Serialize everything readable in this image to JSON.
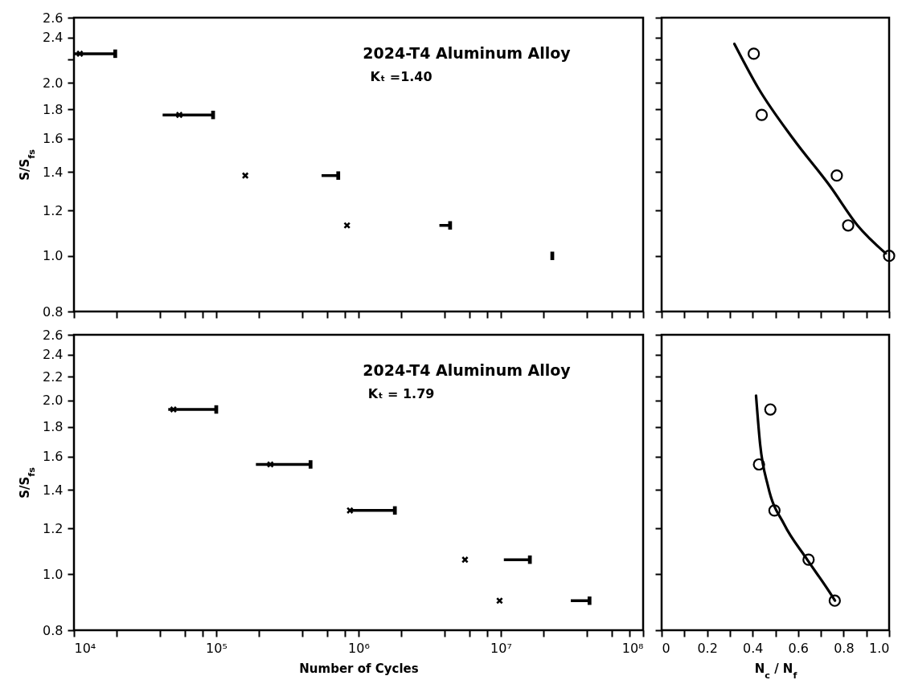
{
  "chart_data": [
    {
      "type": "scatter",
      "ylabel": "S/S$_{fs}$",
      "annotations": [
        "2024-T4 Aluminum Alloy",
        "Kₜ =1.40"
      ],
      "log": "xy",
      "xlim": [
        10000,
        100000000
      ],
      "xticks": [
        {
          "value": 10000,
          "label": null
        },
        {
          "value": 20000,
          "label": null
        },
        {
          "value": 40000,
          "label": null
        },
        {
          "value": 60000,
          "label": null
        },
        {
          "value": 80000,
          "label": null
        },
        {
          "value": 100000,
          "label": null
        },
        {
          "value": 200000,
          "label": null
        },
        {
          "value": 400000,
          "label": null
        },
        {
          "value": 600000,
          "label": null
        },
        {
          "value": 800000,
          "label": null
        },
        {
          "value": 1000000,
          "label": null
        },
        {
          "value": 2000000,
          "label": null
        },
        {
          "value": 4000000,
          "label": null
        },
        {
          "value": 6000000,
          "label": null
        },
        {
          "value": 8000000,
          "label": null
        },
        {
          "value": 10000000,
          "label": null
        },
        {
          "value": 20000000,
          "label": null
        },
        {
          "value": 40000000,
          "label": null
        },
        {
          "value": 60000000,
          "label": null
        },
        {
          "value": 80000000,
          "label": null
        },
        {
          "value": 100000000,
          "label": null
        }
      ],
      "ylim": [
        0.8,
        2.6
      ],
      "yticks": [
        0.8,
        {
          "value": 1,
          "label": "1.0"
        },
        1.2,
        1.4,
        1.6,
        1.8,
        {
          "value": 2,
          "label": "2.0"
        },
        {
          "value": 2.2,
          "label": null
        },
        2.4,
        2.6
      ],
      "tick_labels": "y",
      "series": [
        {
          "type": "scatter",
          "marker": "cross",
          "color": "#000000",
          "x": [
            11000,
            55000,
            160000,
            830000
          ],
          "values": [
            2.25,
            1.76,
            1.38,
            1.13
          ]
        },
        {
          "type": "scatter",
          "marker": "square",
          "color": "#000000",
          "x": [
            19500,
            95000,
            720000,
            4400000,
            23000000
          ],
          "values": [
            2.25,
            1.76,
            1.38,
            1.13,
            1.0
          ],
          "xerrors": [
            [
              10000,
              19500
            ],
            [
              42000,
              95000
            ],
            [
              550000,
              720000
            ],
            [
              3700000,
              4400000
            ],
            [
              23000000,
              23000000
            ]
          ]
        }
      ]
    },
    {
      "type": "scatter",
      "log": "y",
      "xlim": [
        0,
        1
      ],
      "xticks": [
        {
          "value": 0,
          "label": null
        },
        {
          "value": 0.1,
          "label": null
        },
        {
          "value": 0.2,
          "label": null
        },
        {
          "value": 0.3,
          "label": null
        },
        {
          "value": 0.4,
          "label": null
        },
        {
          "value": 0.5,
          "label": null
        },
        {
          "value": 0.6,
          "label": null
        },
        {
          "value": 0.7,
          "label": null
        },
        {
          "value": 0.8,
          "label": null
        },
        {
          "value": 0.9,
          "label": null
        },
        {
          "value": 1,
          "label": null
        }
      ],
      "ylim": [
        0.8,
        2.6
      ],
      "yticks": [
        {
          "value": 0.8,
          "label": null
        },
        {
          "value": 1,
          "label": null
        },
        {
          "value": 1.2,
          "label": null
        },
        {
          "value": 1.4,
          "label": null
        },
        {
          "value": 1.6,
          "label": null
        },
        {
          "value": 1.8,
          "label": null
        },
        {
          "value": 2,
          "label": null
        },
        {
          "value": 2.2,
          "label": null
        },
        {
          "value": 2.4,
          "label": null
        },
        {
          "value": 2.6,
          "label": null
        }
      ],
      "tick_labels": false,
      "series": [
        {
          "type": "scatter",
          "marker": "circle",
          "color": "#000000",
          "x": [
            0.405,
            0.44,
            0.77,
            0.82,
            1.0
          ],
          "values": [
            2.25,
            1.76,
            1.38,
            1.13,
            1.0
          ]
        },
        {
          "type": "line",
          "marker": "none",
          "color": "#000000",
          "x": [
            0.32,
            0.425,
            0.578,
            0.742,
            0.861,
            0.985
          ],
          "values": [
            2.34,
            1.96,
            1.6,
            1.32,
            1.13,
            1.01
          ]
        }
      ]
    },
    {
      "type": "scatter",
      "ylabel": "S/S$_{fs}$",
      "xlabel": "Number of Cycles",
      "annotations": [
        "2024-T4 Aluminum Alloy",
        "Kₜ = 1.79"
      ],
      "log": "xy",
      "xlim": [
        10000,
        100000000
      ],
      "xticks": [
        {
          "value": 10000,
          "label": "10⁴"
        },
        {
          "value": 20000,
          "label": null
        },
        {
          "value": 40000,
          "label": null
        },
        {
          "value": 60000,
          "label": null
        },
        {
          "value": 80000,
          "label": null
        },
        {
          "value": 100000,
          "label": "10⁵"
        },
        {
          "value": 200000,
          "label": null
        },
        {
          "value": 400000,
          "label": null
        },
        {
          "value": 600000,
          "label": null
        },
        {
          "value": 800000,
          "label": null
        },
        {
          "value": 1000000,
          "label": "10⁶"
        },
        {
          "value": 2000000,
          "label": null
        },
        {
          "value": 4000000,
          "label": null
        },
        {
          "value": 6000000,
          "label": null
        },
        {
          "value": 8000000,
          "label": null
        },
        {
          "value": 10000000,
          "label": "10⁷"
        },
        {
          "value": 20000000,
          "label": null
        },
        {
          "value": 40000000,
          "label": null
        },
        {
          "value": 60000000,
          "label": null
        },
        {
          "value": 80000000,
          "label": null
        },
        {
          "value": 100000000,
          "label": "10⁸"
        }
      ],
      "ylim": [
        0.8,
        2.6
      ],
      "yticks": [
        0.8,
        {
          "value": 1,
          "label": "1.0"
        },
        1.2,
        1.4,
        1.6,
        1.8,
        {
          "value": 2,
          "label": "2.0"
        },
        2.2,
        2.4,
        2.6
      ],
      "series": [
        {
          "type": "scatter",
          "marker": "cross",
          "color": "#000000",
          "x": [
            50000,
            240000,
            870000,
            5600000,
            9800000
          ],
          "values": [
            1.93,
            1.55,
            1.29,
            1.06,
            0.9
          ]
        },
        {
          "type": "scatter",
          "marker": "square",
          "color": "#000000",
          "x": [
            100000,
            460000,
            1800000,
            16000000,
            42000000
          ],
          "values": [
            1.93,
            1.55,
            1.29,
            1.06,
            0.9
          ],
          "xerrors": [
            [
              46000,
              100000
            ],
            [
              190000,
              460000
            ],
            [
              870000,
              1800000
            ],
            [
              10500000,
              16000000
            ],
            [
              31000000,
              42000000
            ]
          ]
        }
      ]
    },
    {
      "type": "scatter",
      "log": "y",
      "xlabel": "N$_{c}$ / N$_{f}$",
      "xlim": [
        0,
        1
      ],
      "xticks": [
        0,
        {
          "value": 0.1,
          "label": null
        },
        0.2,
        {
          "value": 0.3,
          "label": null
        },
        0.4,
        {
          "value": 0.5,
          "label": null
        },
        0.6,
        {
          "value": 0.7,
          "label": null
        },
        0.8,
        {
          "value": 0.9,
          "label": null
        },
        {
          "value": 1,
          "label": "1.0"
        }
      ],
      "ylim": [
        0.8,
        2.6
      ],
      "yticks": [
        {
          "value": 0.8,
          "label": null
        },
        {
          "value": 1,
          "label": null
        },
        {
          "value": 1.2,
          "label": null
        },
        {
          "value": 1.4,
          "label": null
        },
        {
          "value": 1.6,
          "label": null
        },
        {
          "value": 1.8,
          "label": null
        },
        {
          "value": 2,
          "label": null
        },
        {
          "value": 2.2,
          "label": null
        },
        {
          "value": 2.4,
          "label": null
        },
        {
          "value": 2.6,
          "label": null
        }
      ],
      "tick_labels": "x",
      "series": [
        {
          "type": "scatter",
          "marker": "circle",
          "color": "#000000",
          "x": [
            0.478,
            0.428,
            0.496,
            0.646,
            0.761
          ],
          "values": [
            1.93,
            1.55,
            1.29,
            1.06,
            0.9
          ]
        },
        {
          "type": "line",
          "marker": "none",
          "color": "#000000",
          "x": [
            0.415,
            0.433,
            0.468,
            0.539,
            0.633,
            0.739,
            0.762
          ],
          "values": [
            2.04,
            1.68,
            1.42,
            1.22,
            1.07,
            0.93,
            0.9
          ]
        }
      ]
    }
  ]
}
